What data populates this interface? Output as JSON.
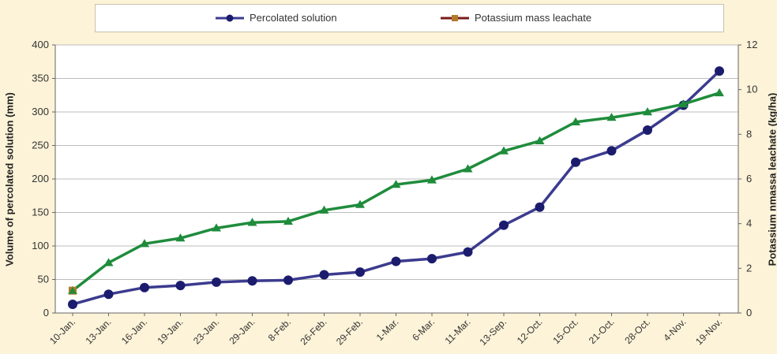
{
  "legend": {
    "items": [
      {
        "label": "Percolated solution",
        "color": "#3b3b8f"
      },
      {
        "label": "Potassium mass leachate",
        "color": "#7a1a1a"
      }
    ]
  },
  "chart_data": {
    "type": "line",
    "categories": [
      "10-Jan.",
      "13-Jan.",
      "16-Jan.",
      "19-Jan.",
      "23-Jan.",
      "29-Jan.",
      "8-Feb.",
      "26-Feb.",
      "29-Feb.",
      "1-Mar.",
      "6-Mar.",
      "11-Mar.",
      "13-Sep.",
      "12-Oct.",
      "15-Oct.",
      "21-Oct.",
      "28-Oct.",
      "4-Nov.",
      "19-Nov."
    ],
    "ylabel": "Volume of  percolated solution (mm)",
    "ylabel_right": "Potassium nmassa leachate (kg/ha)",
    "ylim": [
      0,
      400
    ],
    "ylim_right": [
      0,
      12
    ],
    "yticks": [
      0,
      50,
      100,
      150,
      200,
      250,
      300,
      350,
      400
    ],
    "yticks_right": [
      0,
      2,
      4,
      6,
      8,
      10,
      12
    ],
    "grid": true,
    "series": [
      {
        "name": "Percolated solution",
        "axis": "left",
        "color": "#3b3b8f",
        "marker": "circle",
        "values": [
          13,
          28,
          38,
          41,
          46,
          48,
          49,
          57,
          61,
          77,
          81,
          91,
          131,
          158,
          225,
          242,
          273,
          310,
          361
        ]
      },
      {
        "name": "",
        "axis": "right",
        "color": "#1f8c3c",
        "marker": "triangle",
        "values": [
          1.0,
          2.25,
          3.1,
          3.35,
          3.8,
          4.05,
          4.1,
          4.6,
          4.85,
          5.75,
          5.95,
          6.45,
          7.25,
          7.7,
          8.55,
          8.75,
          9.0,
          9.35,
          9.85
        ]
      }
    ]
  }
}
